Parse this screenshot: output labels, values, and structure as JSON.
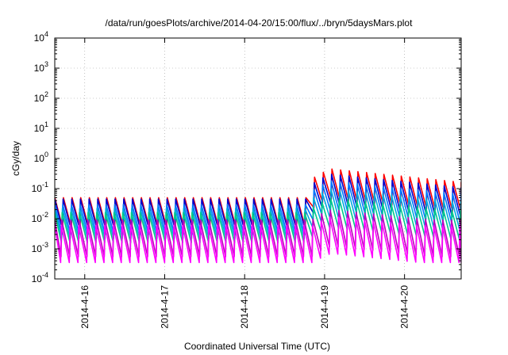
{
  "chart_data": {
    "type": "line",
    "title": "/data/run/goesPlots/archive/2014-04-20/15:00/flux/../bryn/5daysMars.plot",
    "xlabel": "Coordinated Universal Time (UTC)",
    "ylabel": "cGy/day",
    "x_range_days": [
      "2014-04-15 15:00",
      "2014-04-20 17:00"
    ],
    "x_ticks": [
      "2014-4-16",
      "2014-4-17",
      "2014-4-18",
      "2014-4-19",
      "2014-4-20"
    ],
    "y_scale": "log",
    "ylim": [
      0.0001,
      10000
    ],
    "y_ticks": [
      {
        "base": "10",
        "exp": "-4"
      },
      {
        "base": "10",
        "exp": "-3"
      },
      {
        "base": "10",
        "exp": "-2"
      },
      {
        "base": "10",
        "exp": "-1"
      },
      {
        "base": "10",
        "exp": "0"
      },
      {
        "base": "10",
        "exp": "1"
      },
      {
        "base": "10",
        "exp": "2"
      },
      {
        "base": "10",
        "exp": "3"
      },
      {
        "base": "10",
        "exp": "4"
      }
    ],
    "grid": true,
    "sawtooth_period_hours": 2.6,
    "event_onset": "2014-04-18 18:30",
    "event_peak": "2014-04-19 02:00",
    "series": [
      {
        "color": "#ff0000",
        "quiet_peak": 0.05,
        "quiet_trough": 0.005,
        "event_peak": 0.45
      },
      {
        "color": "#0000cc",
        "quiet_peak": 0.045,
        "quiet_trough": 0.0045,
        "event_peak": 0.3
      },
      {
        "color": "#0077ff",
        "quiet_peak": 0.03,
        "quiet_trough": 0.003,
        "event_peak": 0.18
      },
      {
        "color": "#00aadd",
        "quiet_peak": 0.022,
        "quiet_trough": 0.0022,
        "event_peak": 0.1
      },
      {
        "color": "#00cc88",
        "quiet_peak": 0.016,
        "quiet_trough": 0.0016,
        "event_peak": 0.05
      },
      {
        "color": "#bb00bb",
        "quiet_peak": 0.009,
        "quiet_trough": 0.00055,
        "event_peak": 0.02
      },
      {
        "color": "#ff00ff",
        "quiet_peak": 0.006,
        "quiet_trough": 0.00035,
        "event_peak": 0.012
      }
    ],
    "colors": {
      "axis": "#000000",
      "grid": "#999999",
      "background": "#ffffff"
    }
  }
}
